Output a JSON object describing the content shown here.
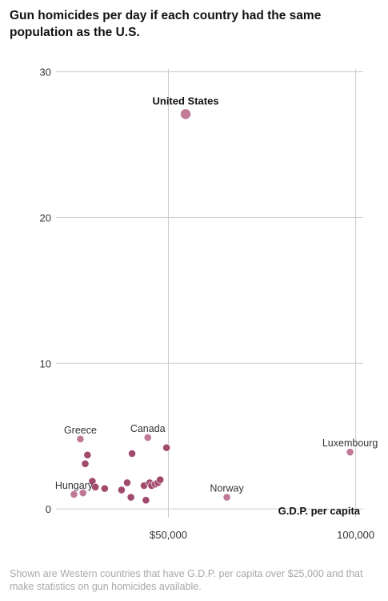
{
  "header": {
    "title": "Gun homicides per day if each country had the same population as the U.S."
  },
  "footer": {
    "note": "Shown are Western countries that have G.D.P. per capita over $25,000 and that make statistics on gun homicides available."
  },
  "colors": {
    "point": "#a24a6e",
    "highlight_point": "#c07a97",
    "grid": "#cccccc",
    "text": "#111111",
    "note": "#a8a8a8"
  },
  "chart_data": {
    "type": "scatter",
    "title": "Gun homicides per day if each country had the same population as the U.S.",
    "xlabel": "G.D.P. per capita",
    "ylabel": "",
    "xlim": [
      20000,
      102000
    ],
    "ylim": [
      -0.6,
      30.2
    ],
    "x_ticks": [
      50000,
      100000
    ],
    "x_tick_labels": [
      "$50,000",
      "100,000"
    ],
    "y_ticks": [
      0,
      10,
      20,
      30
    ],
    "y_tick_labels": [
      "0",
      "10",
      "20",
      "30"
    ],
    "grid": true,
    "points": [
      {
        "x": 54600,
        "y": 27.1,
        "label": "United States",
        "highlight": true,
        "bold": true,
        "label_pos": "above"
      },
      {
        "x": 26500,
        "y": 4.8,
        "label": "Greece",
        "highlight": true,
        "bold": false,
        "label_pos": "above"
      },
      {
        "x": 44500,
        "y": 4.9,
        "label": "Canada",
        "highlight": true,
        "bold": false,
        "label_pos": "above"
      },
      {
        "x": 24800,
        "y": 1.0,
        "label": "Hungary",
        "highlight": true,
        "bold": false,
        "label_pos": "above"
      },
      {
        "x": 65600,
        "y": 0.8,
        "label": "Norway",
        "highlight": true,
        "bold": false,
        "label_pos": "above"
      },
      {
        "x": 98500,
        "y": 3.9,
        "label": "Luxembourg",
        "highlight": true,
        "bold": false,
        "label_pos": "above"
      },
      {
        "x": 27200,
        "y": 1.1,
        "label": "",
        "highlight": true,
        "bold": false
      },
      {
        "x": 28400,
        "y": 3.7,
        "label": "",
        "highlight": false,
        "bold": false
      },
      {
        "x": 27800,
        "y": 3.1,
        "label": "",
        "highlight": false,
        "bold": false
      },
      {
        "x": 29700,
        "y": 1.9,
        "label": "",
        "highlight": false,
        "bold": false
      },
      {
        "x": 30500,
        "y": 1.5,
        "label": "",
        "highlight": false,
        "bold": false
      },
      {
        "x": 33000,
        "y": 1.4,
        "label": "",
        "highlight": false,
        "bold": false
      },
      {
        "x": 37500,
        "y": 1.3,
        "label": "",
        "highlight": false,
        "bold": false
      },
      {
        "x": 39000,
        "y": 1.8,
        "label": "",
        "highlight": false,
        "bold": false
      },
      {
        "x": 40000,
        "y": 0.8,
        "label": "",
        "highlight": false,
        "bold": false
      },
      {
        "x": 40300,
        "y": 3.8,
        "label": "",
        "highlight": false,
        "bold": false
      },
      {
        "x": 43500,
        "y": 1.6,
        "label": "",
        "highlight": false,
        "bold": false
      },
      {
        "x": 44000,
        "y": 0.6,
        "label": "",
        "highlight": false,
        "bold": false
      },
      {
        "x": 45000,
        "y": 1.8,
        "label": "",
        "highlight": false,
        "bold": false
      },
      {
        "x": 45500,
        "y": 1.6,
        "label": "",
        "highlight": false,
        "bold": false
      },
      {
        "x": 46500,
        "y": 1.7,
        "label": "",
        "highlight": false,
        "bold": false
      },
      {
        "x": 47200,
        "y": 1.8,
        "label": "",
        "highlight": false,
        "bold": false
      },
      {
        "x": 47800,
        "y": 2.0,
        "label": "",
        "highlight": false,
        "bold": false
      },
      {
        "x": 49500,
        "y": 4.2,
        "label": "",
        "highlight": false,
        "bold": false
      }
    ]
  }
}
